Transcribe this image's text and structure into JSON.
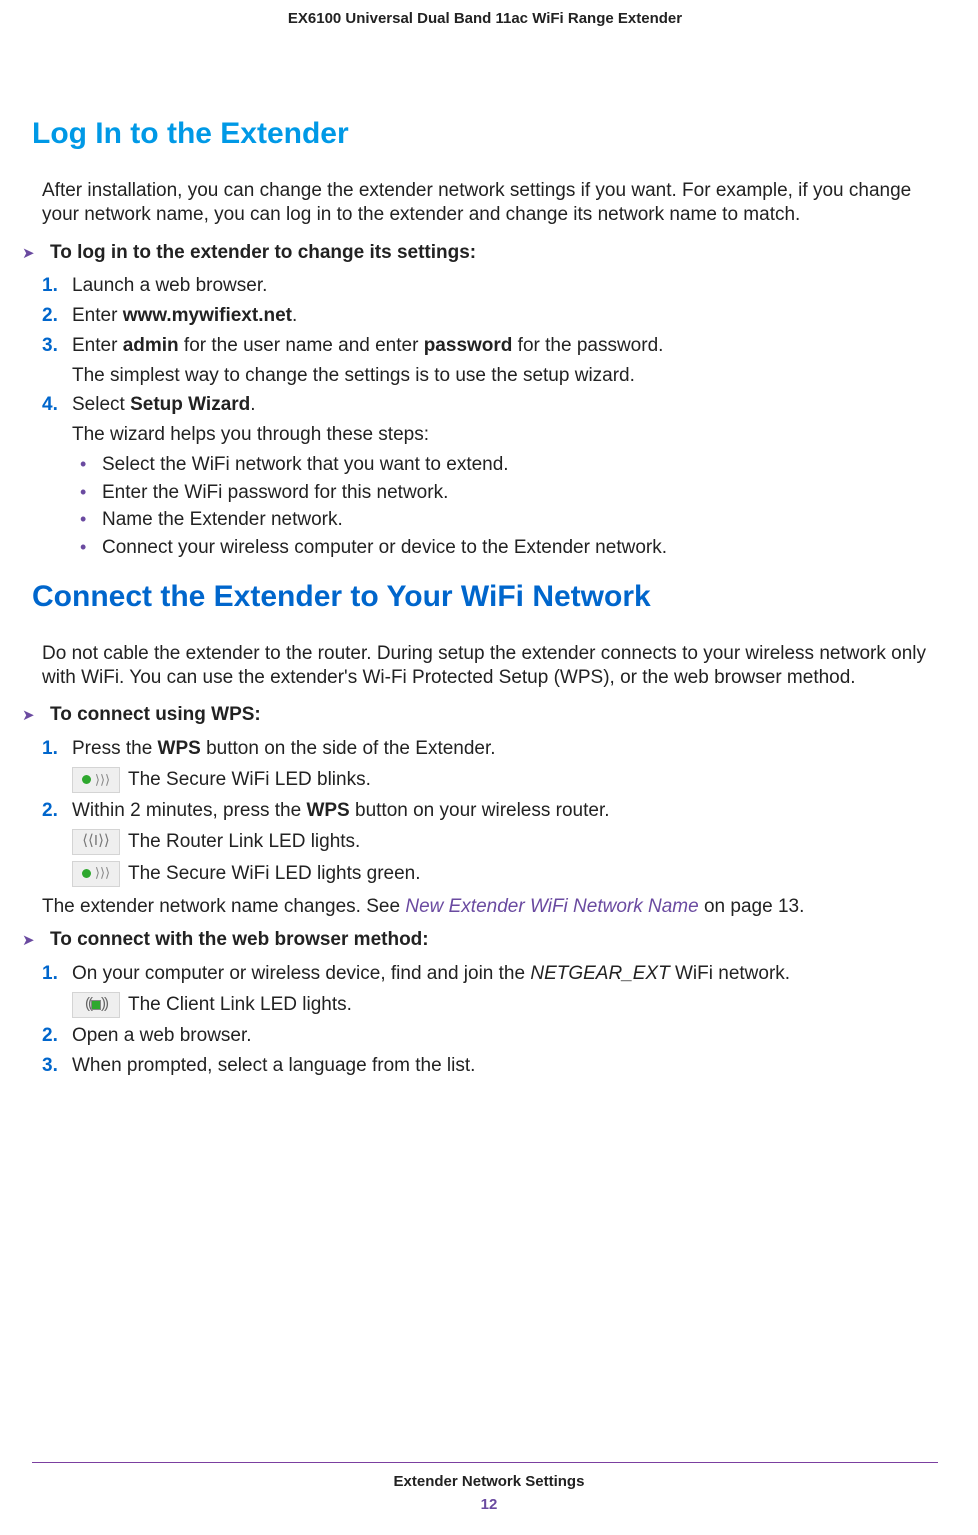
{
  "colors": {
    "heading1": "#0099e6",
    "heading2": "#0066cc",
    "numbered": "#0066cc",
    "bullet": "#6a4aa0",
    "link": "#6a4aa0",
    "footer_page": "#6a4aa0",
    "footer_rule": "#7b3fa0",
    "body": "#222222"
  },
  "header": {
    "product": "EX6100 Universal Dual Band 11ac WiFi Range Extender"
  },
  "section1": {
    "title": "Log In to the Extender",
    "intro": "After installation, you can change the extender network settings if you want. For example, if you change your network name, you can log in to the extender and change its network name to match.",
    "arrow_label": "To log in to the extender to change its settings:",
    "steps": [
      {
        "num": "1.",
        "text": "Launch a web browser."
      },
      {
        "num": "2.",
        "pre": "Enter ",
        "bold": "www.mywifiext.net",
        "post": "."
      },
      {
        "num": "3.",
        "pre": "Enter ",
        "bold1": "admin",
        "mid": " for the user name and enter ",
        "bold2": "password",
        "post": " for the password.",
        "note": "The simplest way to change the settings is to use the setup wizard."
      },
      {
        "num": "4.",
        "pre": "Select ",
        "bold": "Setup Wizard",
        "post": ".",
        "note": "The wizard helps you through these steps:",
        "bullets": [
          "Select the WiFi network that you want to extend.",
          "Enter the WiFi password for this network.",
          "Name the Extender network.",
          "Connect your wireless computer or device to the Extender network."
        ]
      }
    ]
  },
  "section2": {
    "title": "Connect the Extender to Your WiFi Network",
    "intro": "Do not cable the extender to the router. During setup the extender connects to your wireless network only with WiFi. You can use the extender's Wi-Fi Protected Setup (WPS), or the web browser method.",
    "arrow1_label": "To connect using WPS:",
    "wps_steps": [
      {
        "num": "1.",
        "pre": "Press the ",
        "bold": "WPS",
        "post": " button on the side of the Extender.",
        "led": {
          "icon": "secure",
          "text": "The Secure WiFi LED blinks."
        }
      },
      {
        "num": "2.",
        "pre": "Within 2 minutes, press the ",
        "bold": "WPS",
        "post": " button on your wireless router.",
        "leds": [
          {
            "icon": "router",
            "text": "The Router Link LED lights."
          },
          {
            "icon": "secure",
            "text": "The Secure WiFi LED lights green."
          }
        ]
      }
    ],
    "name_change_pre": "The extender network name changes. See ",
    "name_change_link": "New Extender WiFi Network Name",
    "name_change_post": " on page 13.",
    "arrow2_label": "To connect with the web browser method:",
    "web_steps": [
      {
        "num": "1.",
        "pre": "On your computer or wireless device, find and join the ",
        "italic": "NETGEAR_EXT",
        "post": " WiFi network.",
        "led": {
          "icon": "client",
          "text": "The Client Link LED lights."
        }
      },
      {
        "num": "2.",
        "text": "Open a web browser."
      },
      {
        "num": "3.",
        "text": "When prompted, select a language from the list."
      }
    ]
  },
  "footer": {
    "chapter": "Extender Network Settings",
    "page": "12"
  }
}
